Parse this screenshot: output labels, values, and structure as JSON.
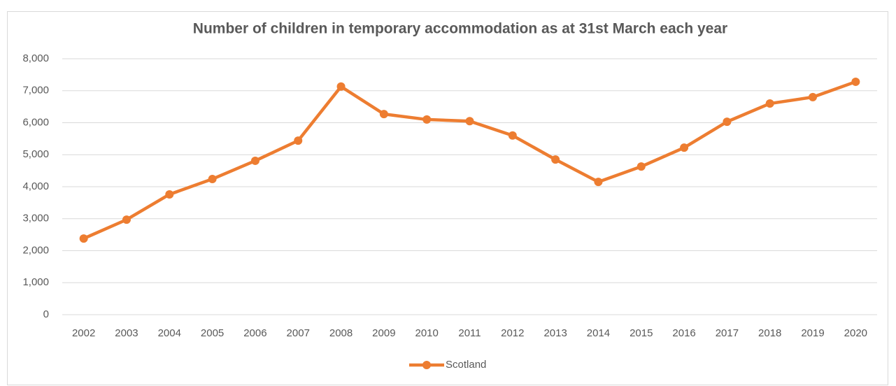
{
  "chart_data": {
    "type": "line",
    "title": "Number of children in temporary accommodation  as at 31st March each year",
    "categories": [
      "2002",
      "2003",
      "2004",
      "2005",
      "2006",
      "2007",
      "2008",
      "2009",
      "2010",
      "2011",
      "2012",
      "2013",
      "2014",
      "2015",
      "2016",
      "2017",
      "2018",
      "2019",
      "2020"
    ],
    "series": [
      {
        "name": "Scotland",
        "color": "#ed7d31",
        "values": [
          2380,
          2970,
          3760,
          4240,
          4810,
          5440,
          7130,
          6270,
          6100,
          6050,
          5600,
          4850,
          4150,
          4630,
          5220,
          6030,
          6600,
          6800,
          7280
        ]
      }
    ],
    "ylim": [
      0,
      8000
    ],
    "yticks": [
      0,
      {
        "value": 1000,
        "label": "1,000"
      },
      {
        "value": 2000,
        "label": "2,000"
      },
      {
        "value": 3000,
        "label": "3,000"
      },
      {
        "value": 4000,
        "label": "4,000"
      },
      {
        "value": 5000,
        "label": "5,000"
      },
      {
        "value": 6000,
        "label": "6,000"
      },
      {
        "value": 7000,
        "label": "7,000"
      },
      {
        "value": 8000,
        "label": "8,000"
      }
    ],
    "grid": true,
    "legend": "bottom"
  }
}
